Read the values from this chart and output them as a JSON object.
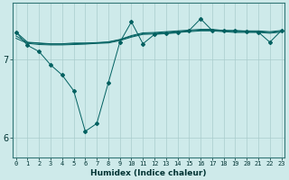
{
  "xlabel": "Humidex (Indice chaleur)",
  "x": [
    0,
    1,
    2,
    3,
    4,
    5,
    6,
    7,
    8,
    9,
    10,
    11,
    12,
    13,
    14,
    15,
    16,
    17,
    18,
    19,
    20,
    21,
    22,
    23
  ],
  "line1": [
    7.35,
    7.22,
    7.21,
    7.2,
    7.2,
    7.21,
    7.21,
    7.215,
    7.225,
    7.255,
    7.305,
    7.34,
    7.345,
    7.355,
    7.365,
    7.375,
    7.385,
    7.385,
    7.37,
    7.365,
    7.365,
    7.365,
    7.355,
    7.37
  ],
  "line2": [
    7.3,
    7.215,
    7.205,
    7.195,
    7.195,
    7.2,
    7.205,
    7.21,
    7.22,
    7.25,
    7.295,
    7.33,
    7.335,
    7.345,
    7.355,
    7.365,
    7.375,
    7.375,
    7.365,
    7.355,
    7.355,
    7.355,
    7.345,
    7.36
  ],
  "line3": [
    7.27,
    7.205,
    7.19,
    7.185,
    7.185,
    7.19,
    7.195,
    7.205,
    7.21,
    7.24,
    7.285,
    7.32,
    7.325,
    7.335,
    7.345,
    7.355,
    7.365,
    7.365,
    7.355,
    7.345,
    7.345,
    7.345,
    7.335,
    7.35
  ],
  "line_main": [
    7.35,
    7.18,
    7.1,
    6.93,
    6.8,
    6.6,
    6.08,
    6.18,
    6.7,
    7.22,
    7.48,
    7.2,
    7.32,
    7.33,
    7.34,
    7.37,
    7.52,
    7.37,
    7.37,
    7.37,
    7.36,
    7.35,
    7.22,
    7.37
  ],
  "bg_color": "#ceeaea",
  "line_color": "#006060",
  "grid_color": "#aacccc",
  "ylim_min": 5.75,
  "ylim_max": 7.72,
  "yticks": [
    6,
    7
  ],
  "xlim_min": -0.3,
  "xlim_max": 23.3
}
